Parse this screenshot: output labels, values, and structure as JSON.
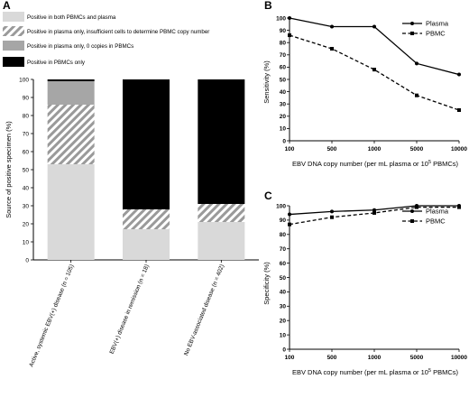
{
  "panels": {
    "a_letter": "A",
    "b_letter": "B",
    "c_letter": "C"
  },
  "colors": {
    "both": "#d9d9d9",
    "insufficient_hatch": "#9a9a9a",
    "zero_copies": "#a6a6a6",
    "pbmc_only": "#000000",
    "line": "#000000"
  },
  "chart_data": [
    {
      "type": "bar",
      "stacked": true,
      "ylabel": "Source of positive specimen (%)",
      "ylim": [
        0,
        100
      ],
      "yticks": [
        0,
        10,
        20,
        30,
        40,
        50,
        60,
        70,
        80,
        90,
        100
      ],
      "categories": [
        "Active, systemic EBV(+) disease (n = 105)",
        "EBV(+) disease in remission (n = 18)",
        "No EBV-associated disease (n = 402)"
      ],
      "series": [
        {
          "name": "Positive in both PBMCs and plasma",
          "values": [
            53,
            17,
            21
          ],
          "fill": "solid-light"
        },
        {
          "name": "Positive in plasma only, insufficient cells to determine PBMC copy number",
          "values": [
            33,
            11,
            10
          ],
          "fill": "hatched"
        },
        {
          "name": "Positive in plasma only, 0 copies in PBMCs",
          "values": [
            13,
            0,
            0
          ],
          "fill": "solid-mid"
        },
        {
          "name": "Positive in PBMCs only",
          "values": [
            1,
            72,
            69
          ],
          "fill": "solid-black"
        }
      ],
      "legend": "top"
    },
    {
      "type": "line",
      "xlabel_pre": "EBV DNA copy number (per mL plasma or 10",
      "xlabel_sup": "5",
      "xlabel_post": " PBMCs)",
      "ylabel": "Sensitivity (%)",
      "x": [
        100,
        500,
        1000,
        5000,
        10000
      ],
      "xticks": [
        "100",
        "500",
        "1000",
        "5000",
        "10000"
      ],
      "ylim": [
        0,
        100
      ],
      "yticks": [
        0,
        10,
        20,
        30,
        40,
        50,
        60,
        70,
        80,
        90,
        100
      ],
      "series": [
        {
          "name": "Plasma",
          "values": [
            100,
            93,
            93,
            63,
            54
          ],
          "style": "solid",
          "marker": "circle"
        },
        {
          "name": "PBMC",
          "values": [
            86,
            75,
            58,
            37,
            25
          ],
          "style": "dashed",
          "marker": "square"
        }
      ],
      "legend": "top-right"
    },
    {
      "type": "line",
      "xlabel_pre": "EBV DNA copy number (per mL plasma or 10",
      "xlabel_sup": "5",
      "xlabel_post": " PBMCs)",
      "ylabel": "Specificity (%)",
      "x": [
        100,
        500,
        1000,
        5000,
        10000
      ],
      "xticks": [
        "100",
        "500",
        "1000",
        "5000",
        "10000"
      ],
      "ylim": [
        0,
        100
      ],
      "yticks": [
        0,
        10,
        20,
        30,
        40,
        50,
        60,
        70,
        80,
        90,
        100
      ],
      "series": [
        {
          "name": "Plasma",
          "values": [
            94,
            96,
            97,
            100,
            100
          ],
          "style": "solid",
          "marker": "circle"
        },
        {
          "name": "PBMC",
          "values": [
            87,
            92,
            95,
            99,
            99
          ],
          "style": "dashed",
          "marker": "square"
        }
      ],
      "legend": "top-right"
    }
  ]
}
